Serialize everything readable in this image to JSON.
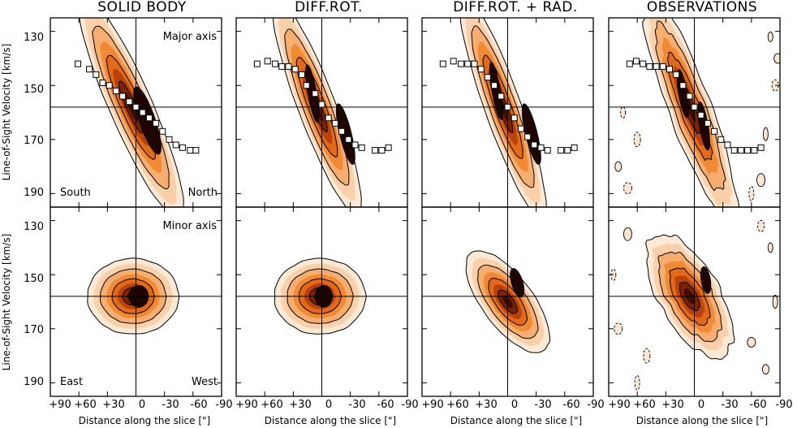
{
  "chart_data": {
    "type": "contour",
    "columns": [
      "SOLID BODY",
      "DIFF.ROT.",
      "DIFF.ROT. + RAD.",
      "OBSERVATIONS"
    ],
    "rows": [
      "Major axis",
      "Minor axis"
    ],
    "ylabel": "Line-of-Sight Velocity [km/s]",
    "xlabel": "Distance along the slice [\"]",
    "xlim": [
      90,
      -90
    ],
    "ylim": [
      125,
      195
    ],
    "xticks": [
      "+90",
      "+60",
      "+30",
      "0",
      "-30",
      "-60",
      "-90"
    ],
    "yticks": [
      "130",
      "150",
      "170",
      "190"
    ],
    "systemic_velocity": 158,
    "corner_labels": {
      "major_left": "South",
      "major_right": "North",
      "minor_left": "East",
      "minor_right": "West"
    },
    "major_axis_points": [
      {
        "name": "SOLID BODY",
        "x": [
          61,
          49,
          42,
          35,
          28,
          21,
          14,
          7,
          0,
          -7,
          -14,
          -21,
          -28,
          -35,
          -42,
          -49,
          -57,
          -63
        ],
        "y": [
          142,
          144,
          146,
          149,
          150,
          152,
          154,
          156,
          158,
          160,
          162,
          164,
          167,
          170,
          172,
          173,
          174,
          174
        ]
      },
      {
        "name": "DIFF.ROT.",
        "x": [
          68,
          57,
          49,
          42,
          35,
          28,
          21,
          16,
          7,
          0,
          -7,
          -14,
          -21,
          -28,
          -35,
          -42,
          -56,
          -63,
          -70
        ],
        "y": [
          142,
          141,
          142,
          143,
          143,
          144,
          146,
          150,
          153,
          157,
          162,
          164,
          167,
          170,
          172,
          173,
          174,
          174,
          173
        ]
      },
      {
        "name": "DIFF.ROT. + RAD.",
        "x": [
          68,
          57,
          49,
          42,
          35,
          28,
          21,
          14,
          7,
          0,
          -7,
          -14,
          -21,
          -28,
          -35,
          -42,
          -56,
          -63,
          -70
        ],
        "y": [
          142,
          141,
          142,
          142,
          142,
          144,
          147,
          150,
          154,
          158,
          162,
          166,
          169,
          172,
          173,
          174,
          174,
          174,
          173
        ]
      },
      {
        "name": "OBSERVATIONS",
        "x": [
          68,
          61,
          54,
          47,
          40,
          33,
          26,
          19,
          12,
          5,
          0,
          -7,
          -14,
          -21,
          -28,
          -35,
          -42,
          -49,
          -56,
          -63,
          -70
        ],
        "y": [
          142,
          141,
          142,
          143,
          143,
          143,
          144,
          146,
          150,
          154,
          158,
          161,
          164,
          167,
          170,
          172,
          174,
          174,
          174,
          174,
          173
        ]
      }
    ],
    "colors": {
      "contour_line": "#000000",
      "low": "#fbe3cc",
      "mid": "#f08a26",
      "high": "#3a0c00"
    }
  }
}
